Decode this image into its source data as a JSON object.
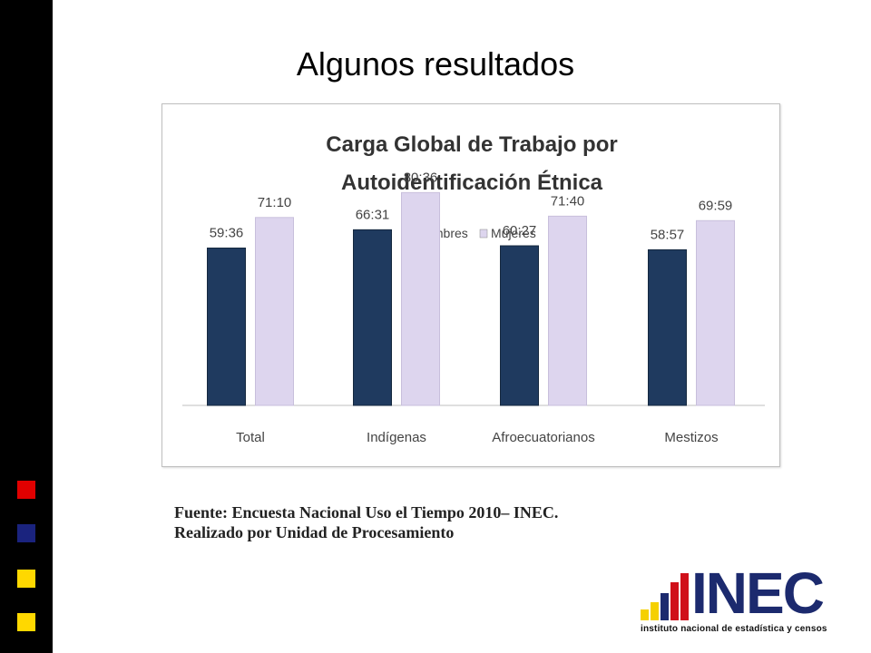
{
  "slide": {
    "title": "Algunos resultados",
    "source_line1": "Fuente: Encuesta Nacional Uso el Tiempo 2010– INEC.",
    "source_line2": "Realizado por Unidad de Procesamiento"
  },
  "logo": {
    "name": "INEC",
    "subtitle": "instituto nacional de estadística y censos",
    "colors": [
      "#f5d000",
      "#f5d000",
      "#1c2a6e",
      "#d0101a",
      "#d0101a"
    ]
  },
  "decor": {
    "squares": [
      {
        "name": "red-square",
        "color": "#e00000"
      },
      {
        "name": "blue-square",
        "color": "#1a237e"
      },
      {
        "name": "yellow-square-1",
        "color": "#ffd800"
      },
      {
        "name": "yellow-square-2",
        "color": "#ffd800"
      }
    ]
  },
  "chart_data": {
    "type": "bar",
    "title": "Carga Global de Trabajo por",
    "title_line2": "Autoidentificación Étnica",
    "categories": [
      "Total",
      "Indígenas",
      "Afroecuatorianos",
      "Mestizos"
    ],
    "series": [
      {
        "name": "Hombres",
        "color": "#1f3a5f",
        "values": [
          59.6,
          66.52,
          60.45,
          58.95
        ],
        "labels": [
          "59:36",
          "66:31",
          "60:27",
          "58:57"
        ]
      },
      {
        "name": "Mujeres",
        "color": "#ddd5ee",
        "values": [
          71.17,
          80.6,
          71.67,
          69.98
        ],
        "labels": [
          "71:10",
          "80:36",
          "71:40",
          "69:59"
        ]
      }
    ],
    "legend_position": "top",
    "grid": false,
    "ylim": [
      0,
      90
    ]
  }
}
